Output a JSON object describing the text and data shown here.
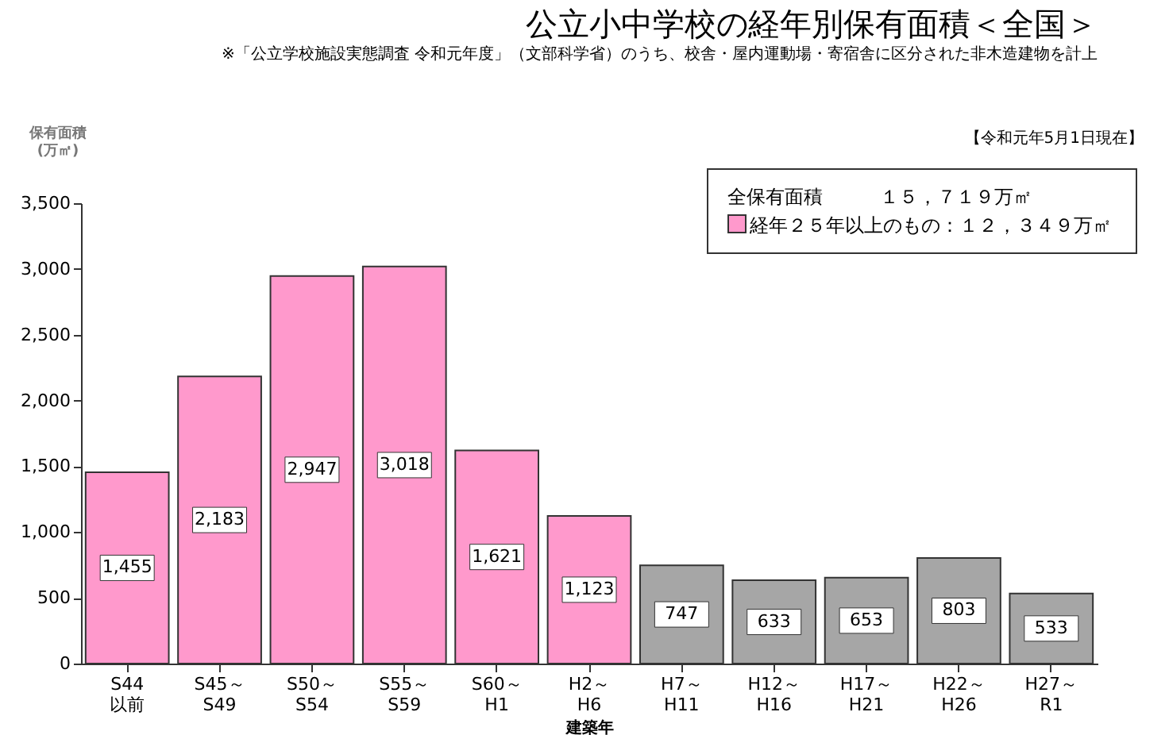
{
  "chart_data": {
    "type": "bar",
    "title": "公立小中学校の経年別保有面積＜全国＞",
    "subtitle": "※「公立学校施設実態調査 令和元年度」（文部科学省）のうち、校舎・屋内運動場・寄宿舎に区分された非木造建物を計上",
    "xlabel": "建築年",
    "ylabel": "保有面積\n(万㎡)",
    "categories": [
      "S44\n以前",
      "S45～\nS49",
      "S50～\nS54",
      "S55～\nS59",
      "S60～\nH1",
      "H2～\nH6",
      "H7～\nH11",
      "H12～\nH16",
      "H17～\nH21",
      "H22～\nH26",
      "H27～\nR1"
    ],
    "values": [
      1455,
      2183,
      2947,
      3018,
      1621,
      1123,
      747,
      633,
      653,
      803,
      533
    ],
    "colors": [
      "#ff99cc",
      "#ff99cc",
      "#ff99cc",
      "#ff99cc",
      "#ff99cc",
      "#ff99cc",
      "#a6a6a6",
      "#a6a6a6",
      "#a6a6a6",
      "#a6a6a6",
      "#a6a6a6"
    ],
    "ylim": [
      0,
      3500
    ],
    "yticks": [
      0,
      {
        "value": 500,
        "label": "500"
      },
      {
        "value": 1000,
        "label": "1,000"
      },
      {
        "value": 1500,
        "label": "1,500"
      },
      {
        "value": 2000,
        "label": "2,000"
      },
      {
        "value": 2500,
        "label": "2,500"
      },
      {
        "value": 3000,
        "label": "3,000"
      },
      {
        "value": 3500,
        "label": "3,500"
      }
    ],
    "value_labels": [
      "1,455",
      "2,183",
      "2,947",
      "3,018",
      "1,621",
      "1,123",
      "747",
      "633",
      "653",
      "803",
      "533"
    ],
    "grid": false,
    "annotations": [
      "【令和元年5月1日現在】",
      "全保有面積　　　１５，７１９万㎡",
      "経年２５年以上のもの：１２，３４９万㎡"
    ]
  }
}
